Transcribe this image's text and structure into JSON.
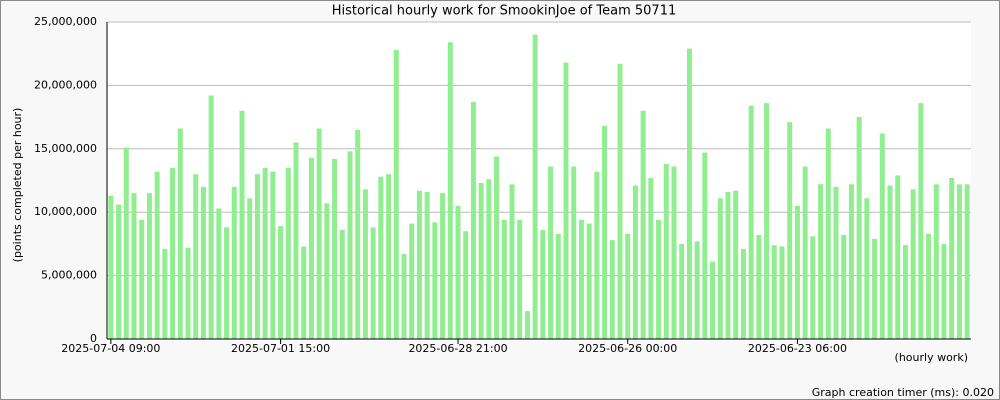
{
  "chart_data": {
    "type": "bar",
    "title": "Historical hourly work for SmookinJoe of Team 50711",
    "y_label": "(points completed per hour)",
    "x_label": "(hourly work)",
    "footer": "Graph creation timer (ms): 0.020",
    "color": "#90ee90",
    "grid": true,
    "ylim": [
      0,
      25000000
    ],
    "yticks": [
      0,
      {
        "value": 5000000,
        "label": "5,000,000"
      },
      {
        "value": 10000000,
        "label": "10,000,000"
      },
      {
        "value": 15000000,
        "label": "15,000,000"
      },
      {
        "value": 20000000,
        "label": "20,000,000"
      },
      {
        "value": 25000000,
        "label": "25,000,000"
      }
    ],
    "categories": [
      "2025-07-04 09:00",
      null,
      null,
      null,
      null,
      null,
      null,
      null,
      null,
      null,
      null,
      null,
      null,
      null,
      null,
      null,
      null,
      null,
      null,
      null,
      null,
      null,
      "2025-07-01 15:00",
      null,
      null,
      null,
      null,
      null,
      null,
      null,
      null,
      null,
      null,
      null,
      null,
      null,
      null,
      null,
      null,
      null,
      null,
      null,
      null,
      null,
      null,
      "2025-06-28 21:00",
      null,
      null,
      null,
      null,
      null,
      null,
      null,
      null,
      null,
      null,
      null,
      null,
      null,
      null,
      null,
      null,
      null,
      null,
      null,
      null,
      null,
      "2025-06-26 00:00",
      null,
      null,
      null,
      null,
      null,
      null,
      null,
      null,
      null,
      null,
      null,
      null,
      null,
      null,
      null,
      null,
      null,
      null,
      null,
      null,
      null,
      "2025-06-23 06:00",
      null,
      null,
      null,
      null,
      null,
      null,
      null,
      null,
      null,
      null,
      null,
      null,
      null,
      null,
      null,
      null,
      null,
      null,
      null,
      null,
      null,
      null
    ],
    "values": [
      11300000,
      10600000,
      15100000,
      11500000,
      9400000,
      11500000,
      13200000,
      7100000,
      13500000,
      16600000,
      7200000,
      13000000,
      12000000,
      19200000,
      10300000,
      8800000,
      12000000,
      18000000,
      11100000,
      13000000,
      13500000,
      13200000,
      8900000,
      13500000,
      15500000,
      7300000,
      14300000,
      16600000,
      10700000,
      14200000,
      8600000,
      14800000,
      16500000,
      11800000,
      8800000,
      12800000,
      13000000,
      22800000,
      6700000,
      9100000,
      11700000,
      11600000,
      9200000,
      11500000,
      23400000,
      10500000,
      8500000,
      18700000,
      12300000,
      12600000,
      14400000,
      9400000,
      12200000,
      9400000,
      2200000,
      24000000,
      8600000,
      13600000,
      8300000,
      21800000,
      13600000,
      9400000,
      9100000,
      13200000,
      16800000,
      7800000,
      21700000,
      8300000,
      12100000,
      18000000,
      12700000,
      9400000,
      13800000,
      13600000,
      7500000,
      22900000,
      7700000,
      14700000,
      6100000,
      11100000,
      11600000,
      11700000,
      7100000,
      18400000,
      8200000,
      18600000,
      7400000,
      7300000,
      17100000,
      10500000,
      13600000,
      8100000,
      12200000,
      16600000,
      12000000,
      8200000,
      12200000,
      17500000,
      11100000,
      7900000,
      16200000,
      12100000,
      12900000,
      7400000,
      11800000,
      18600000,
      8300000,
      12200000,
      7500000,
      12700000,
      12200000,
      12200000
    ]
  }
}
